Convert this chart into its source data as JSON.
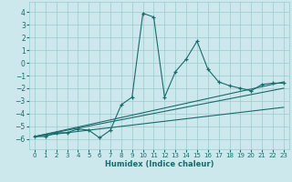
{
  "xlabel": "Humidex (Indice chaleur)",
  "ylabel": "",
  "background_color": "#cce8ed",
  "grid_color": "#99cccc",
  "line_color": "#1a6b6b",
  "xlim": [
    -0.5,
    23.5
  ],
  "ylim": [
    -6.8,
    4.8
  ],
  "yticks": [
    -6,
    -5,
    -4,
    -3,
    -2,
    -1,
    0,
    1,
    2,
    3,
    4
  ],
  "xticks": [
    0,
    1,
    2,
    3,
    4,
    5,
    6,
    7,
    8,
    9,
    10,
    11,
    12,
    13,
    14,
    15,
    16,
    17,
    18,
    19,
    20,
    21,
    22,
    23
  ],
  "series1_x": [
    0,
    1,
    2,
    3,
    4,
    5,
    6,
    7,
    8,
    9,
    10,
    11,
    12,
    13,
    14,
    15,
    16,
    17,
    18,
    19,
    20,
    21,
    22,
    23
  ],
  "series1_y": [
    -5.8,
    -5.8,
    -5.5,
    -5.5,
    -5.2,
    -5.3,
    -5.9,
    -5.3,
    -3.3,
    -2.7,
    3.9,
    3.6,
    -2.7,
    -0.7,
    0.3,
    1.7,
    -0.5,
    -1.5,
    -1.8,
    -2.0,
    -2.2,
    -1.7,
    -1.6,
    -1.6
  ],
  "trend1_x": [
    0,
    23
  ],
  "trend1_y": [
    -5.8,
    -2.0
  ],
  "trend2_x": [
    0,
    23
  ],
  "trend2_y": [
    -5.8,
    -1.5
  ],
  "trend3_x": [
    0,
    23
  ],
  "trend3_y": [
    -5.8,
    -3.5
  ]
}
